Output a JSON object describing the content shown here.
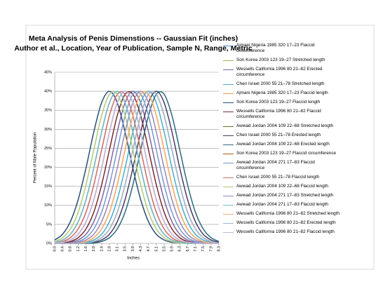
{
  "chart_data": {
    "type": "line",
    "title": "Meta Analysis of Penis Dimenstions -- Gaussian Fit (inches)",
    "subtitle": "Author et al., Location, Year of Publication, Sample N, Range, Metric",
    "x_label": "Inches",
    "y_label": "Percent of Male Population",
    "categories": [
      "0.0",
      "0.4",
      "0.8",
      "1.2",
      "1.6",
      "2.0",
      "2.4",
      "2.8",
      "3.1",
      "3.5",
      "3.9",
      "4.3",
      "4.7",
      "5.1",
      "5.5",
      "5.9",
      "6.3",
      "6.7",
      "7.1",
      "7.5",
      "7.9",
      "8.3"
    ],
    "ylim": [
      0,
      45
    ],
    "yticks": [
      {
        "value": 0,
        "label": "0%"
      },
      {
        "value": 5,
        "label": "5%"
      },
      {
        "value": 10,
        "label": "10%"
      },
      {
        "value": 15,
        "label": "15%"
      },
      {
        "value": 20,
        "label": "20%"
      },
      {
        "value": 25,
        "label": "25%"
      },
      {
        "value": 30,
        "label": "30%"
      },
      {
        "value": 35,
        "label": "35%"
      },
      {
        "value": 40,
        "label": "40%"
      },
      {
        "value": 45,
        "label": "45%"
      }
    ],
    "grid": true,
    "series": [
      {
        "name": "Ajmani Nigeria 1985 320 17–23 Flaccid circumference",
        "color": "#4f81bd",
        "values": [
          0.1,
          0.3,
          0.9,
          2.4,
          5.7,
          11.5,
          19.8,
          29.3,
          37,
          40,
          37,
          29.3,
          19.8,
          11.5,
          5.7,
          2.4,
          0.9,
          0.3,
          0.1,
          0,
          0,
          0
        ]
      },
      {
        "name": "Son Korea 2003 123 19–27 Stretched length",
        "color": "#9bbb59",
        "values": [
          0,
          0,
          0,
          0.1,
          0.5,
          1.5,
          3.8,
          8.2,
          15.4,
          24.6,
          33.6,
          39.2,
          39.2,
          33.6,
          24.6,
          15.4,
          8.2,
          3.8,
          1.5,
          0.5,
          0.1,
          0
        ]
      },
      {
        "name": "Wessells California 1996 80 21–82 Erected circumference",
        "color": "#8064a2",
        "values": [
          0,
          0.1,
          0.3,
          0.9,
          2.4,
          5.7,
          11.5,
          19.8,
          29.3,
          37,
          40,
          37,
          29.3,
          19.8,
          11.5,
          5.7,
          2.4,
          0.9,
          0.3,
          0.1,
          0,
          0
        ]
      },
      {
        "name": "Chen Israel 2000 55 21–78 Stretched length",
        "color": "#4bacc6",
        "values": [
          0,
          0,
          0,
          0.1,
          0.3,
          0.9,
          2.4,
          5.7,
          11.5,
          19.8,
          29.3,
          37,
          40,
          37,
          29.3,
          19.8,
          11.5,
          5.7,
          2.4,
          0.9,
          0.3,
          0.1
        ]
      },
      {
        "name": "Ajmani Nigeria 1985 320 17–23 Flaccid length",
        "color": "#f79646",
        "values": [
          0.1,
          0.5,
          1.5,
          3.8,
          8.2,
          15.4,
          24.6,
          33.6,
          39.2,
          39.2,
          33.6,
          24.6,
          15.4,
          8.2,
          3.8,
          1.5,
          0.5,
          0.1,
          0,
          0,
          0,
          0
        ]
      },
      {
        "name": "Son Korea 2003 123 19–27 Flaccid length",
        "color": "#2c4d75",
        "values": [
          0.9,
          2.4,
          5.7,
          11.5,
          19.8,
          29.3,
          37,
          40,
          37,
          29.3,
          19.8,
          11.5,
          5.7,
          2.4,
          0.9,
          0.3,
          0.1,
          0,
          0,
          0,
          0,
          0
        ]
      },
      {
        "name": "Wessells California 1996 80 21–82 Flaccid circumference",
        "color": "#772c2a",
        "values": [
          0,
          0.1,
          0.5,
          1.5,
          3.8,
          8.2,
          15.4,
          24.6,
          33.6,
          39.2,
          39.2,
          33.6,
          24.6,
          15.4,
          8.2,
          3.8,
          1.5,
          0.5,
          0.1,
          0,
          0,
          0
        ]
      },
      {
        "name": "Awwad Jordan 2004 109 22–68 Stretched length",
        "color": "#5f7530",
        "values": [
          0,
          0,
          0,
          0,
          0.1,
          0.5,
          1.5,
          3.8,
          8.2,
          15.4,
          24.6,
          33.6,
          39.2,
          39.2,
          33.6,
          24.6,
          15.4,
          8.2,
          3.8,
          1.5,
          0.5,
          0.1
        ]
      },
      {
        "name": "Chen Israel 2000 55 21–78 Erected length",
        "color": "#4d3b62",
        "values": [
          0,
          0,
          0,
          0,
          0.1,
          0.3,
          0.9,
          2.4,
          5.7,
          11.5,
          19.8,
          29.3,
          37,
          40,
          37,
          29.3,
          19.8,
          11.5,
          5.7,
          2.4,
          0.9,
          0.3
        ]
      },
      {
        "name": "Awwad Jordan 2004 109 22–68 Erected length",
        "color": "#276a7c",
        "values": [
          0,
          0,
          0,
          0,
          0,
          0.1,
          0.5,
          1.5,
          3.8,
          8.2,
          15.4,
          24.6,
          33.6,
          39.2,
          39.2,
          33.6,
          24.6,
          15.4,
          8.2,
          3.8,
          1.5,
          0.5
        ]
      },
      {
        "name": "Son Korea 2003 123 19–27 Flaccid circumference",
        "color": "#b65708",
        "values": [
          0.3,
          0.9,
          2.4,
          5.7,
          11.5,
          19.8,
          29.3,
          37,
          40,
          37,
          29.3,
          19.8,
          11.5,
          5.7,
          2.4,
          0.9,
          0.3,
          0.1,
          0,
          0,
          0,
          0
        ]
      },
      {
        "name": "Awwad Jordan 2004 271 17–83 Flaccid circumference",
        "color": "#729aca",
        "values": [
          0,
          0,
          0.1,
          0.5,
          1.5,
          3.8,
          8.2,
          15.4,
          24.6,
          33.6,
          39.2,
          39.2,
          33.6,
          24.6,
          15.4,
          8.2,
          3.8,
          1.5,
          0.5,
          0.1,
          0,
          0
        ]
      },
      {
        "name": "Chen Israel 2000 55 21–78 Flaccid length",
        "color": "#cd7371",
        "values": [
          0.1,
          0.5,
          1.5,
          3.8,
          8.2,
          15.4,
          24.6,
          33.6,
          39.2,
          39.2,
          33.6,
          24.6,
          15.4,
          8.2,
          3.8,
          1.5,
          0.5,
          0.1,
          0,
          0,
          0,
          0
        ]
      },
      {
        "name": "Awwad Jordan 2004 109 22–68 Flaccid length",
        "color": "#afc97a",
        "values": [
          0.5,
          1.5,
          3.8,
          8.2,
          15.4,
          24.6,
          33.6,
          39.2,
          39.2,
          33.6,
          24.6,
          15.4,
          8.2,
          3.8,
          1.5,
          0.5,
          0.1,
          0,
          0,
          0,
          0,
          0
        ]
      },
      {
        "name": "Awwad Jordan 2004 271 17–83 Stretched length",
        "color": "#9c85b6",
        "values": [
          0,
          0,
          0.1,
          0.3,
          0.9,
          2.4,
          5.7,
          11.5,
          19.8,
          29.3,
          37,
          40,
          37,
          29.3,
          19.8,
          11.5,
          5.7,
          2.4,
          0.9,
          0.3,
          0.1,
          0
        ]
      },
      {
        "name": "Awwad Jordan 2004 271 17–83 Flaccid length",
        "color": "#6fbdd1",
        "values": [
          0.3,
          0.9,
          2.4,
          5.7,
          11.5,
          19.8,
          29.3,
          37,
          40,
          37,
          29.3,
          19.8,
          11.5,
          5.7,
          2.4,
          0.9,
          0.3,
          0.1,
          0,
          0,
          0,
          0
        ]
      },
      {
        "name": "Wessells California 1996 80 21–82 Stretched length",
        "color": "#f9ab6b",
        "values": [
          0,
          0,
          0,
          0.1,
          0.5,
          1.5,
          3.8,
          8.2,
          15.4,
          24.6,
          33.6,
          39.2,
          39.2,
          33.6,
          24.6,
          15.4,
          8.2,
          3.8,
          1.5,
          0.5,
          0.1,
          0
        ]
      },
      {
        "name": "Wessells California 1996 80 21–82 Erected length",
        "color": "#a5b6d3",
        "values": [
          0,
          0,
          0,
          0,
          0.1,
          0.5,
          1.5,
          3.8,
          8.2,
          15.4,
          24.6,
          33.6,
          39.2,
          39.2,
          33.6,
          24.6,
          15.4,
          8.2,
          3.8,
          1.5,
          0.5,
          0.1
        ]
      },
      {
        "name": "Wessells California 1996 80 21–82 Flaccid length",
        "color": "#c9b2d6",
        "values": [
          0.1,
          0.3,
          0.9,
          2.4,
          5.7,
          11.5,
          19.8,
          29.3,
          37,
          40,
          37,
          29.3,
          19.8,
          11.5,
          5.7,
          2.4,
          0.9,
          0.3,
          0.1,
          0,
          0,
          0
        ]
      }
    ]
  }
}
